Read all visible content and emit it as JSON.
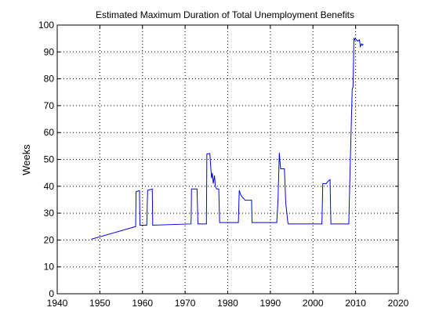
{
  "chart_data": {
    "type": "line",
    "title": "Estimated Maximum Duration of  Total Unemployment Benefits",
    "xlabel": "",
    "ylabel": "Weeks",
    "xlim": [
      1940,
      2020
    ],
    "ylim": [
      0,
      100
    ],
    "xticks": [
      1940,
      1950,
      1960,
      1970,
      1980,
      1990,
      2000,
      2010,
      2020
    ],
    "yticks": [
      0,
      10,
      20,
      30,
      40,
      50,
      60,
      70,
      80,
      90,
      100
    ],
    "grid": true,
    "grid_style": "dotted",
    "line_color": "#0000ff",
    "series": [
      {
        "x": [
          1948,
          1958.4,
          1958.5,
          1959.3,
          1959.4,
          1961.0,
          1961.2,
          1962.3,
          1962.4,
          1971.4,
          1971.5,
          1972.8,
          1973.0,
          1975.0,
          1975.1,
          1975.8,
          1976.2,
          1976.4,
          1976.6,
          1976.9,
          1977.1,
          1977.4,
          1977.9,
          1978.1,
          1982.5,
          1982.7,
          1983.0,
          1983.4,
          1984.1,
          1985.6,
          1985.7,
          1991.5,
          1991.8,
          1992.1,
          1992.4,
          1993.3,
          1993.6,
          1994.1,
          1994.2,
          2002.1,
          2002.3,
          2003.1,
          2003.6,
          2004.0,
          2004.2,
          2008.4,
          2008.7,
          2009.0,
          2009.2,
          2009.4,
          2009.5,
          2009.6,
          2009.8,
          2009.9,
          2010.5,
          2010.9,
          2011.1,
          2011.4,
          2011.6,
          2011.8
        ],
        "y": [
          20.3,
          25,
          38,
          38.4,
          25.5,
          25.5,
          38.5,
          39,
          25.5,
          26,
          39,
          39,
          26,
          26,
          52,
          52.2,
          43,
          45,
          41,
          44,
          40,
          39,
          39,
          26.5,
          26.5,
          38.5,
          37,
          36,
          34.8,
          34.8,
          26.5,
          26.5,
          35,
          52.5,
          46.5,
          46.5,
          34,
          26.5,
          26,
          26,
          41,
          41,
          42,
          42.5,
          26,
          26,
          46,
          64,
          76,
          77,
          85,
          95,
          94.5,
          95,
          94,
          94.5,
          92,
          93,
          92.5,
          93
        ]
      }
    ]
  }
}
